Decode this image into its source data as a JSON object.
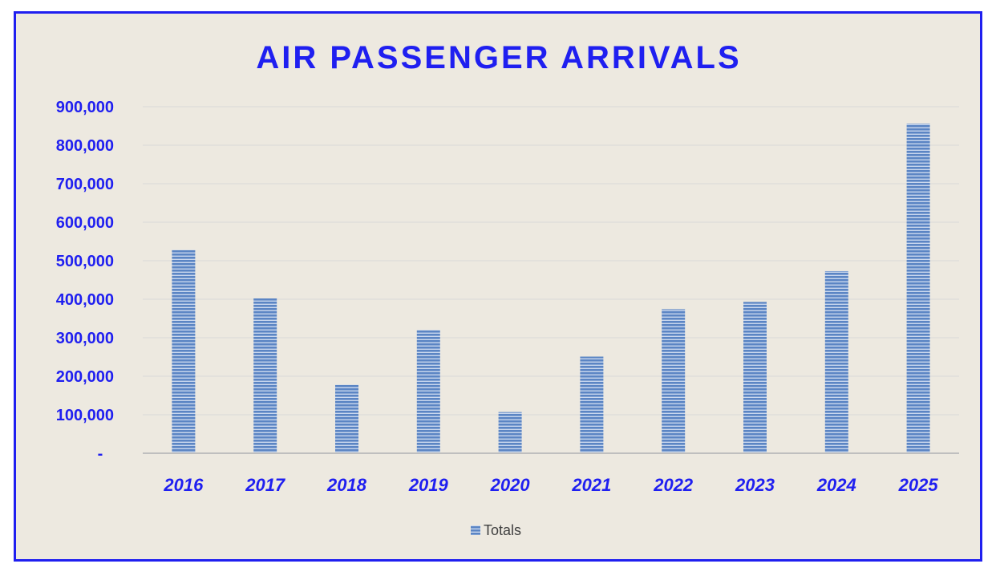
{
  "colors": {
    "accent": "#1f1ff0",
    "background": "#ede9e0",
    "bar_fill": "#5b85c4",
    "bar_stripe": "#c9d7ee",
    "grid": "#d9d9d9",
    "axis": "#bfbfbf"
  },
  "chart_data": {
    "type": "bar",
    "title": "AIR PASSENGER ARRIVALS",
    "xlabel": "",
    "ylabel": "",
    "categories": [
      "2016",
      "2017",
      "2018",
      "2019",
      "2020",
      "2021",
      "2022",
      "2023",
      "2024",
      "2025"
    ],
    "series": [
      {
        "name": "Totals",
        "values": [
          528000,
          402000,
          178000,
          320000,
          107000,
          251000,
          374000,
          393000,
          473000,
          856000
        ]
      }
    ],
    "ylim": [
      0,
      900000
    ],
    "yticks": [
      0,
      100000,
      200000,
      300000,
      400000,
      500000,
      600000,
      700000,
      800000,
      900000
    ],
    "ytick_labels": [
      "-",
      "100,000",
      "200,000",
      "300,000",
      "400,000",
      "500,000",
      "600,000",
      "700,000",
      "800,000",
      "900,000"
    ],
    "grid": true,
    "legend_position": "bottom"
  }
}
